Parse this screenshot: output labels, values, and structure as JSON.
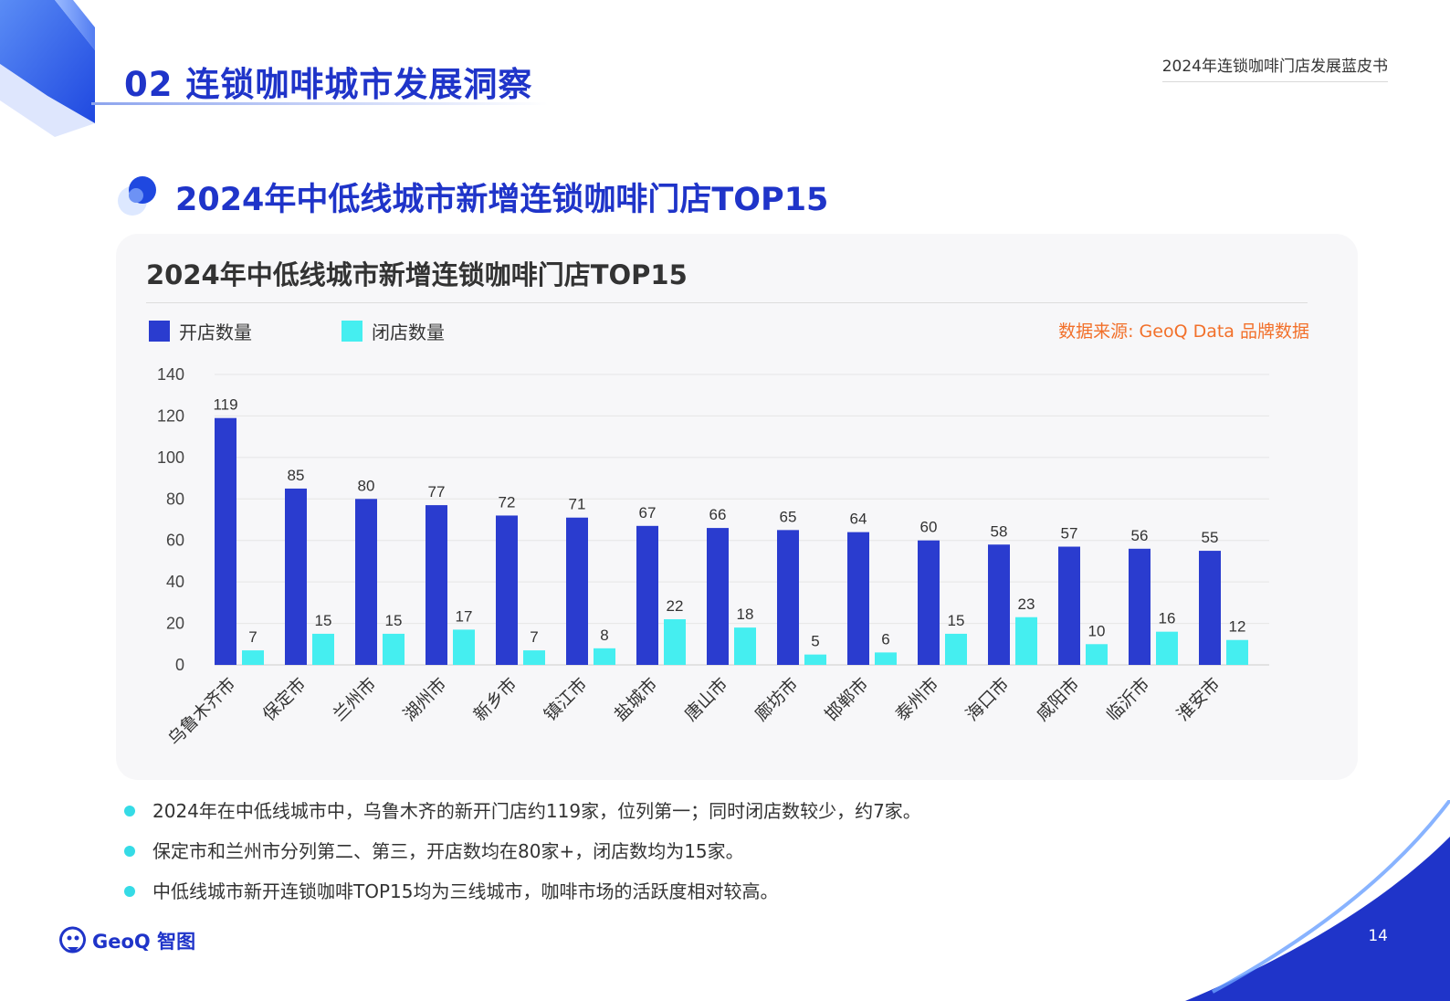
{
  "header": {
    "section_title": "02 连锁咖啡城市发展洞察",
    "doc_title": "2024年连锁咖啡门店发展蓝皮书"
  },
  "slide_title": "2024年中低线城市新增连锁咖啡门店TOP15",
  "data_source": "数据来源: GeoQ Data 品牌数据",
  "colors": {
    "open": "#2a3ccf",
    "close": "#45eef0",
    "accent": "#1f34c9",
    "source": "#f2702a"
  },
  "chart_data": {
    "type": "bar",
    "title": "2024年中低线城市新增连锁咖啡门店TOP15",
    "categories": [
      "乌鲁木齐市",
      "保定市",
      "兰州市",
      "湖州市",
      "新乡市",
      "镇江市",
      "盐城市",
      "唐山市",
      "廊坊市",
      "邯郸市",
      "泰州市",
      "海口市",
      "咸阳市",
      "临沂市",
      "淮安市"
    ],
    "series": [
      {
        "name": "开店数量",
        "color": "#2a3ccf",
        "values": [
          119,
          85,
          80,
          77,
          72,
          71,
          67,
          66,
          65,
          64,
          60,
          58,
          57,
          56,
          55
        ]
      },
      {
        "name": "闭店数量",
        "color": "#45eef0",
        "values": [
          7,
          15,
          15,
          17,
          7,
          8,
          22,
          18,
          5,
          6,
          15,
          23,
          10,
          16,
          12
        ]
      }
    ],
    "xlabel": "",
    "ylabel": "",
    "ylim": [
      0,
      140
    ],
    "yticks": [
      0,
      20,
      40,
      60,
      80,
      100,
      120,
      140
    ],
    "grid": true,
    "legend": "top-left",
    "data_labels": true
  },
  "bullets": [
    "2024年在中低线城市中，乌鲁木齐的新开门店约119家，位列第一；同时闭店数较少，约7家。",
    "保定市和兰州市分列第二、第三，开店数均在80家+，闭店数均为15家。",
    "中低线城市新开连锁咖啡TOP15均为三线城市，咖啡市场的活跃度相对较高。"
  ],
  "footer": {
    "brand": "GeoQ 智图",
    "page_number": "14"
  }
}
